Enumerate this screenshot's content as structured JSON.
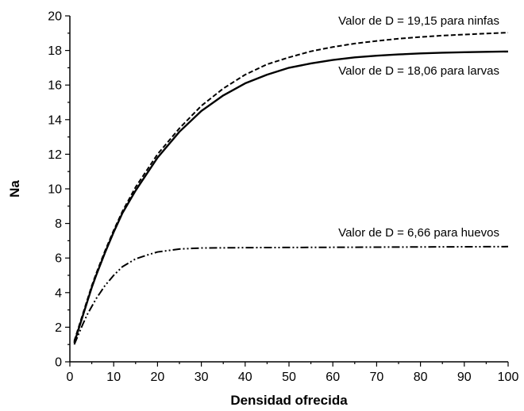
{
  "chart_data": {
    "type": "line",
    "title": "",
    "xlabel": "Densidad ofrecida",
    "ylabel": "Na",
    "xlim": [
      0,
      100
    ],
    "ylim": [
      0,
      20
    ],
    "xticks": [
      0,
      10,
      20,
      30,
      40,
      50,
      60,
      70,
      80,
      90,
      100
    ],
    "yticks": [
      0,
      2,
      4,
      6,
      8,
      10,
      12,
      14,
      16,
      18,
      20
    ],
    "grid": false,
    "legend": "none",
    "series": [
      {
        "key": "ninfas",
        "style": "dashed",
        "color": "#000000",
        "x": [
          1,
          2,
          3,
          4,
          5,
          6,
          8,
          10,
          12,
          15,
          20,
          25,
          30,
          35,
          40,
          45,
          50,
          55,
          60,
          65,
          70,
          75,
          80,
          85,
          90,
          95,
          100
        ],
        "y": [
          1.2,
          2.0,
          2.8,
          3.6,
          4.4,
          5.1,
          6.4,
          7.6,
          8.7,
          10.1,
          12.0,
          13.5,
          14.8,
          15.8,
          16.6,
          17.2,
          17.6,
          17.95,
          18.2,
          18.4,
          18.55,
          18.68,
          18.78,
          18.86,
          18.92,
          18.98,
          19.03
        ]
      },
      {
        "key": "larvas",
        "style": "solid",
        "color": "#000000",
        "x": [
          1,
          2,
          3,
          4,
          5,
          6,
          8,
          10,
          12,
          15,
          20,
          25,
          30,
          35,
          40,
          45,
          50,
          55,
          60,
          65,
          70,
          75,
          80,
          85,
          90,
          95,
          100
        ],
        "y": [
          1.1,
          1.9,
          2.7,
          3.5,
          4.3,
          5.0,
          6.3,
          7.5,
          8.6,
          9.9,
          11.8,
          13.3,
          14.5,
          15.4,
          16.1,
          16.6,
          17.0,
          17.25,
          17.45,
          17.6,
          17.7,
          17.77,
          17.83,
          17.87,
          17.9,
          17.92,
          17.94
        ]
      },
      {
        "key": "huevos",
        "style": "dash-dot-dot",
        "color": "#000000",
        "x": [
          1,
          2,
          3,
          4,
          5,
          6,
          8,
          10,
          12,
          15,
          18,
          20,
          25,
          30,
          40,
          50,
          60,
          70,
          80,
          90,
          100
        ],
        "y": [
          1.0,
          1.6,
          2.2,
          2.75,
          3.2,
          3.65,
          4.4,
          5.0,
          5.5,
          5.95,
          6.2,
          6.35,
          6.52,
          6.58,
          6.6,
          6.61,
          6.62,
          6.63,
          6.64,
          6.65,
          6.66
        ]
      }
    ],
    "annotations": [
      {
        "key": "ninfas",
        "text": "Valor de D = 19,15 para ninfas"
      },
      {
        "key": "larvas",
        "text": "Valor de D = 18,06 para larvas"
      },
      {
        "key": "huevos",
        "text": "Valor de D = 6,66 para huevos"
      }
    ]
  }
}
